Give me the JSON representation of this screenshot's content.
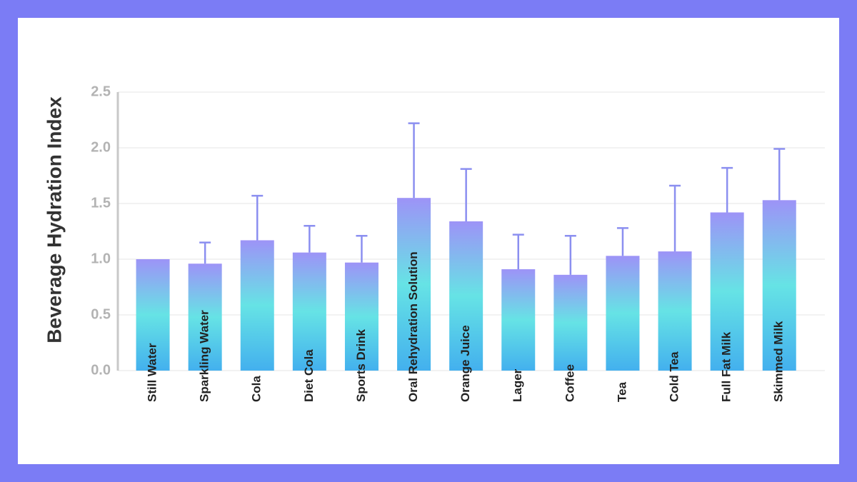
{
  "chart_data": {
    "type": "bar",
    "y_label": "Beverage Hydration Index",
    "categories": [
      "Still Water",
      "Sparkling Water",
      "Cola",
      "Diet Cola",
      "Sports Drink",
      "Oral Rehydration Solution",
      "Orange Juice",
      "Lager",
      "Coffee",
      "Tea",
      "Cold Tea",
      "Full Fat Milk",
      "Skimmed Milk"
    ],
    "values": [
      1.0,
      0.96,
      1.17,
      1.06,
      0.97,
      1.55,
      1.34,
      0.91,
      0.86,
      1.03,
      1.07,
      1.42,
      1.53
    ],
    "errors": [
      null,
      0.19,
      0.4,
      0.24,
      0.24,
      0.67,
      0.47,
      0.31,
      0.35,
      0.25,
      0.59,
      0.4,
      0.46
    ],
    "ylim": [
      0,
      2.5
    ],
    "yticks": [
      {
        "value": 0,
        "label": "0.0"
      },
      0.5,
      {
        "value": 1,
        "label": "1.0"
      },
      1.5,
      {
        "value": 2,
        "label": "2.0"
      },
      2.5
    ],
    "grid": true,
    "bar_gradient": [
      "#9d93f7",
      "#66e3e5",
      "#43b0ee"
    ],
    "error_color": "#8b8ff0"
  }
}
